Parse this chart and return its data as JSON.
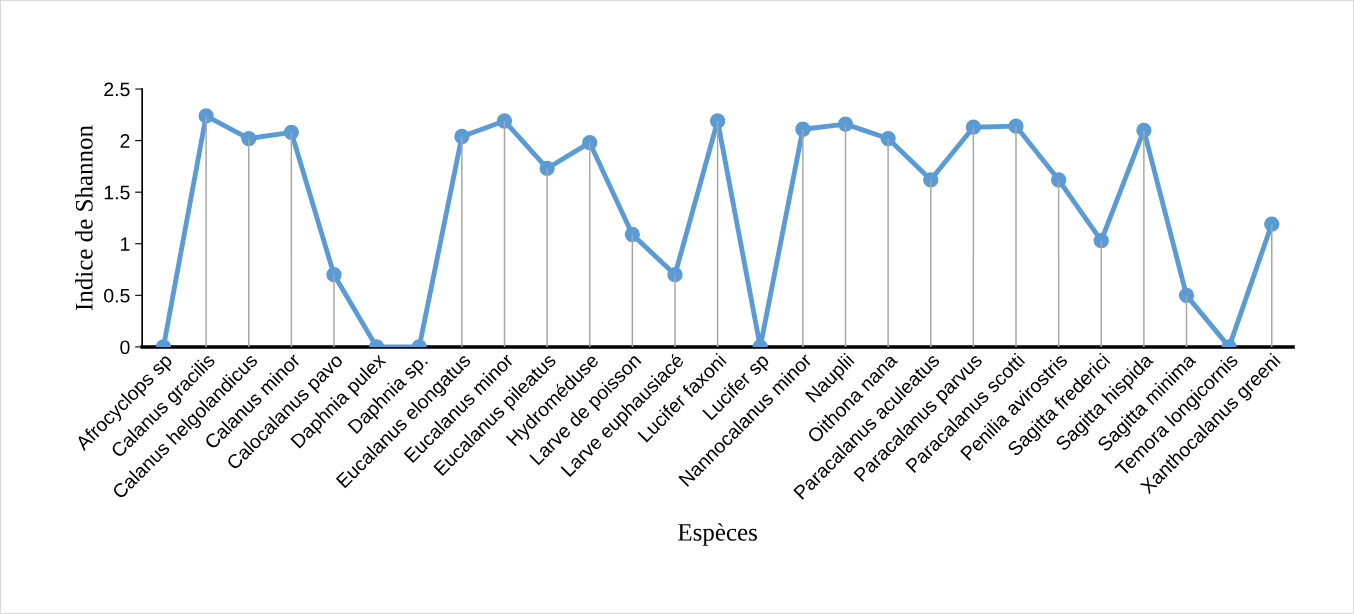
{
  "chart_data": {
    "type": "line",
    "xlabel": "Espèces",
    "ylabel": "Indice de Shannon",
    "categories": [
      "Afrocyclops sp",
      "Calanus gracilis",
      "Calanus helgolandicus",
      "Calanus minor",
      "Calocalanus pavo",
      "Daphnia pulex",
      "Daphnia sp.",
      "Eucalanus elongatus",
      "Eucalanus minor",
      "Eucalanus pileatus",
      "Hydroméduse",
      "Larve de poisson",
      "Larve euphausiacé",
      "Lucifer faxoni",
      "Lucifer sp",
      "Nannocalanus minor",
      "Nauplii",
      "Oithona nana",
      "Paracalanus aculeatus",
      "Paracalanus parvus",
      "Paracalanus scotti",
      "Penilia avirostris",
      "Sagitta frederici",
      "Sagitta hispida",
      "Sagitta minima",
      "Temora longicornis",
      "Xanthocalanus greeni"
    ],
    "series": [
      {
        "type": "bar",
        "color": "#a6a6a6",
        "values": [
          0,
          2.24,
          2.02,
          2.08,
          0.7,
          0,
          0,
          2.04,
          2.19,
          1.73,
          1.98,
          1.09,
          0.7,
          2.19,
          0,
          2.11,
          2.16,
          2.02,
          1.62,
          2.13,
          2.14,
          1.62,
          1.03,
          2.1,
          0.5,
          0,
          1.19
        ]
      },
      {
        "color": "#5b9bd5",
        "values": [
          0,
          2.24,
          2.02,
          2.08,
          0.7,
          0,
          0,
          2.04,
          2.19,
          1.73,
          1.98,
          1.09,
          0.7,
          2.19,
          0,
          2.11,
          2.16,
          2.02,
          1.62,
          2.13,
          2.14,
          1.62,
          1.03,
          2.1,
          0.5,
          0,
          1.19
        ]
      }
    ],
    "ylim": [
      0,
      2.5
    ],
    "yticks": [
      0,
      0.5,
      1,
      1.5,
      2,
      2.5
    ],
    "marker": "circle",
    "line_style": "solid"
  }
}
